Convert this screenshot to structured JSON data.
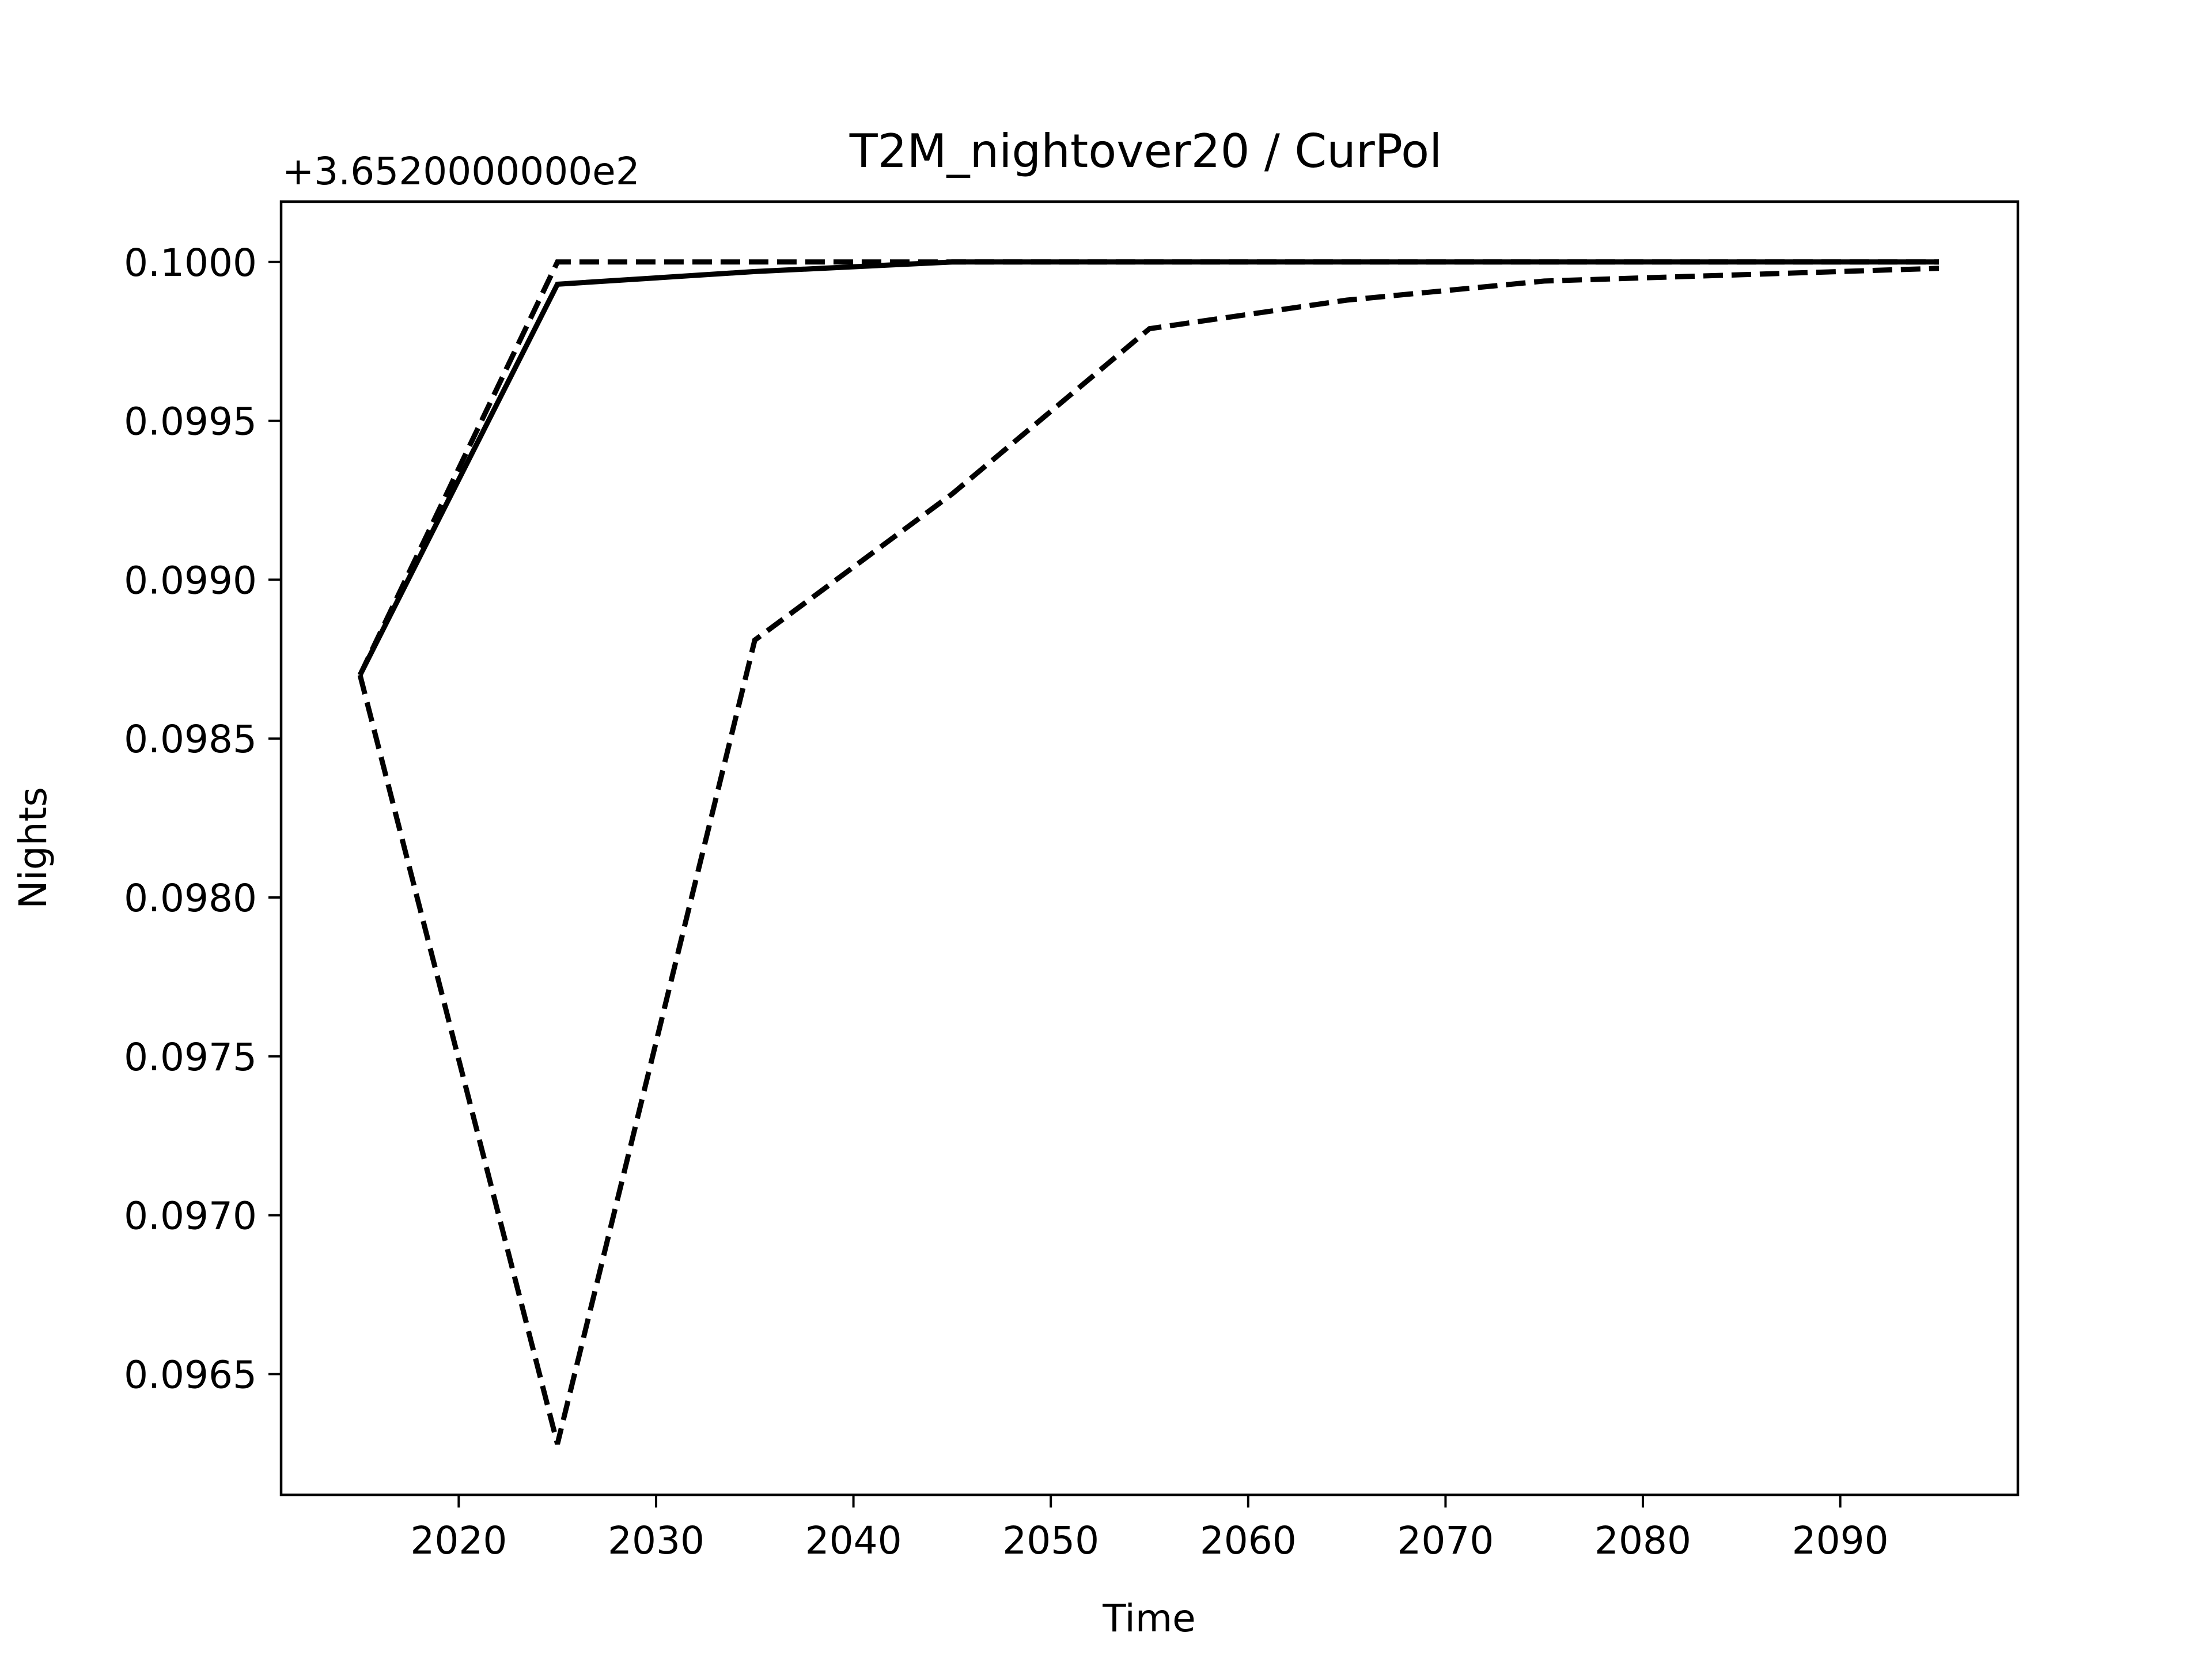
{
  "chart_data": {
    "type": "line",
    "title": "T2M_nightover20 / CurPol",
    "xlabel": "Time",
    "ylabel": "Nights",
    "y_offset_label": "+3.6520000000e2",
    "xlim": [
      2011,
      2099
    ],
    "ylim": [
      0.09612,
      0.10019
    ],
    "xticks": [
      2020,
      2030,
      2040,
      2050,
      2060,
      2070,
      2080,
      2090
    ],
    "yticks": [
      0.0965,
      0.097,
      0.0975,
      0.098,
      0.0985,
      0.099,
      0.0995,
      0.1
    ],
    "ytick_labels": [
      "0.0965",
      "0.0970",
      "0.0975",
      "0.0980",
      "0.0985",
      "0.0990",
      "0.0995",
      "0.1000"
    ],
    "grid": false,
    "series": [
      {
        "style": "solid",
        "color": "#000000",
        "x": [
          2015,
          2025,
          2035,
          2045,
          2055,
          2065,
          2075,
          2085,
          2095
        ],
        "y": [
          0.0987,
          0.09993,
          0.09997,
          0.1,
          0.1,
          0.1,
          0.1,
          0.1,
          0.1
        ]
      },
      {
        "style": "dashed",
        "color": "#000000",
        "x": [
          2015,
          2025,
          2035,
          2045,
          2055,
          2065,
          2075,
          2085,
          2095
        ],
        "y": [
          0.0987,
          0.1,
          0.1,
          0.1,
          0.1,
          0.1,
          0.1,
          0.1,
          0.1
        ]
      },
      {
        "style": "dashed",
        "color": "#000000",
        "x": [
          2015,
          2025,
          2035,
          2045,
          2055,
          2065,
          2075,
          2085,
          2095
        ],
        "y": [
          0.0987,
          0.09628,
          0.09881,
          0.09927,
          0.09979,
          0.09988,
          0.09994,
          0.09996,
          0.09998
        ]
      }
    ]
  }
}
